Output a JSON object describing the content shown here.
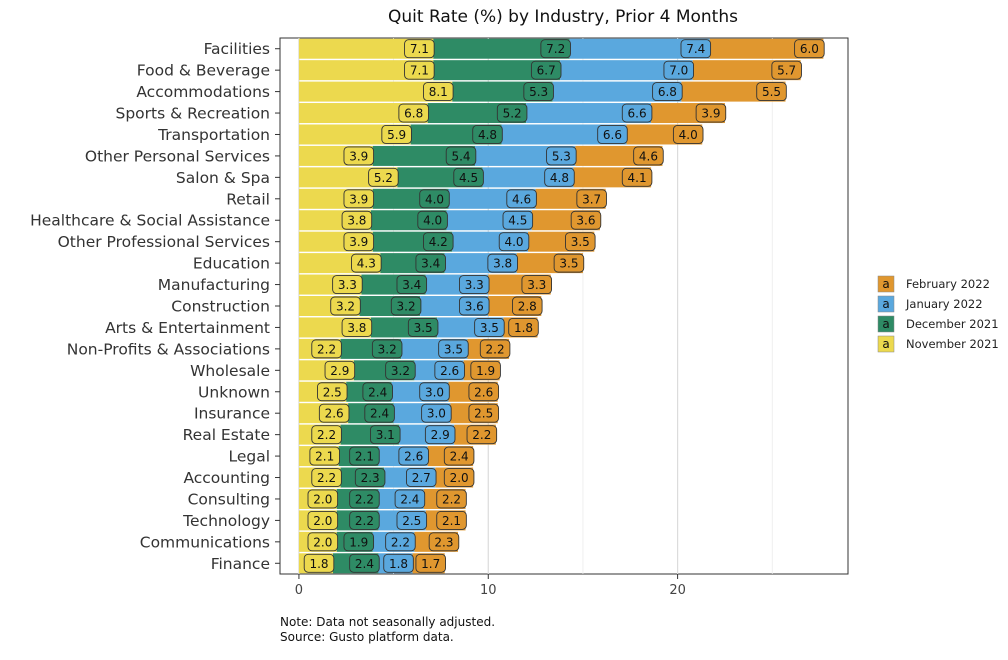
{
  "chart_data": {
    "type": "bar",
    "title": "Quit Rate (%) by Industry, Prior 4 Months",
    "xlabel": "",
    "ylabel": "",
    "xlim": [
      -1,
      29
    ],
    "xticks": [
      "0",
      "10",
      "20"
    ],
    "xtick_values": [
      0,
      10,
      20
    ],
    "stacked": true,
    "horizontal": true,
    "grid": true,
    "legend_position": "right",
    "legend_symbol": "a",
    "categories": [
      "Facilities",
      "Food & Beverage",
      "Accommodations",
      "Sports & Recreation",
      "Transportation",
      "Other Personal Services",
      "Salon & Spa",
      "Retail",
      "Healthcare & Social Assistance",
      "Other Professional Services",
      "Education",
      "Manufacturing",
      "Construction",
      "Arts & Entertainment",
      "Non-Profits & Associations",
      "Wholesale",
      "Unknown",
      "Insurance",
      "Real Estate",
      "Legal",
      "Accounting",
      "Consulting",
      "Technology",
      "Communications",
      "Finance"
    ],
    "series": [
      {
        "name": "November 2021",
        "color": "#ECD94E",
        "values": [
          7.1,
          7.1,
          8.1,
          6.8,
          5.9,
          3.9,
          5.2,
          3.9,
          3.8,
          3.9,
          4.3,
          3.3,
          3.2,
          3.8,
          2.2,
          2.9,
          2.5,
          2.6,
          2.2,
          2.1,
          2.2,
          2.0,
          2.0,
          2.0,
          1.8
        ],
        "labels": [
          "7.1",
          "7.1",
          "8.1",
          "6.8",
          "5.9",
          "3.9",
          "5.2",
          "3.9",
          "3.8",
          "3.9",
          "4.3",
          "3.3",
          "3.2",
          "3.8",
          "2.2",
          "2.9",
          "2.5",
          "2.6",
          "2.2",
          "2.1",
          "2.2",
          "2.0",
          "2.0",
          "2.0",
          "1.8"
        ]
      },
      {
        "name": "December 2021",
        "color": "#2E8B65",
        "values": [
          7.2,
          6.7,
          5.3,
          5.2,
          4.8,
          5.4,
          4.5,
          4.0,
          4.0,
          4.2,
          3.4,
          3.4,
          3.2,
          3.5,
          3.2,
          3.2,
          2.4,
          2.4,
          3.1,
          2.1,
          2.3,
          2.2,
          2.2,
          1.9,
          2.4
        ],
        "labels": [
          "7.2",
          "6.7",
          "5.3",
          "5.2",
          "4.8",
          "5.4",
          "4.5",
          "4.0",
          "4.0",
          "4.2",
          "3.4",
          "3.4",
          "3.2",
          "3.5",
          "3.2",
          "3.2",
          "2.4",
          "2.4",
          "3.1",
          "2.1",
          "2.3",
          "2.2",
          "2.2",
          "1.9",
          "2.4"
        ]
      },
      {
        "name": "January 2022",
        "color": "#5AA8DE",
        "values": [
          7.4,
          7.0,
          6.8,
          6.6,
          6.6,
          5.3,
          4.8,
          4.6,
          4.5,
          4.0,
          3.8,
          3.3,
          3.6,
          3.5,
          3.5,
          2.6,
          3.0,
          3.0,
          2.9,
          2.6,
          2.7,
          2.4,
          2.5,
          2.2,
          1.8
        ],
        "labels": [
          "7.4",
          "7.0",
          "6.8",
          "6.6",
          "6.6",
          "5.3",
          "4.8",
          "4.6",
          "4.5",
          "4.0",
          "3.8",
          "3.3",
          "3.6",
          "3.5",
          "3.5",
          "2.6",
          "3.0",
          "3.0",
          "2.9",
          "2.6",
          "2.7",
          "2.4",
          "2.5",
          "2.2",
          "1.8"
        ]
      },
      {
        "name": "February 2022",
        "color": "#E0972F",
        "values": [
          6.0,
          5.7,
          5.5,
          3.9,
          4.0,
          4.6,
          4.1,
          3.7,
          3.6,
          3.5,
          3.5,
          3.3,
          2.8,
          1.8,
          2.2,
          1.9,
          2.6,
          2.5,
          2.2,
          2.4,
          2.0,
          2.2,
          2.1,
          2.3,
          1.7
        ],
        "labels": [
          "6.0",
          "5.7",
          "5.5",
          "3.9",
          "4.0",
          "4.6",
          "4.1",
          "3.7",
          "3.6",
          "3.5",
          "3.5",
          "3.3",
          "2.8",
          "1.8",
          "2.2",
          "1.9",
          "2.6",
          "2.5",
          "2.2",
          "2.4",
          "2.0",
          "2.2",
          "2.1",
          "2.3",
          "1.7"
        ]
      }
    ]
  },
  "legend": {
    "items": [
      {
        "name": "February 2022",
        "color": "#E0972F"
      },
      {
        "name": "January 2022",
        "color": "#5AA8DE"
      },
      {
        "name": "December 2021",
        "color": "#2E8B65"
      },
      {
        "name": "November 2021",
        "color": "#ECD94E"
      }
    ]
  },
  "footer": {
    "note": "Note: Data not seasonally adjusted.",
    "source": "Source: Gusto platform data."
  }
}
